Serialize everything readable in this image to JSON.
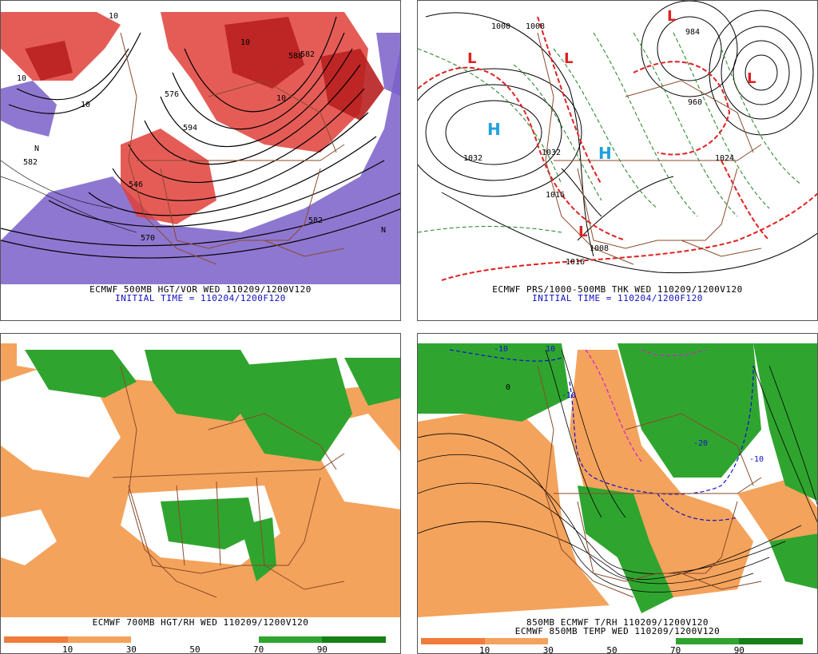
{
  "panels": {
    "top_left": {
      "caption1": "ECMWF 500MB HGT/VOR WED 110209/1200V120",
      "caption2": "INITIAL TIME = 110204/1200F120",
      "labels": [
        "582",
        "582",
        "576",
        "570",
        "588",
        "594",
        "546",
        "582"
      ],
      "extra_labels": [
        "10",
        "10",
        "10",
        "10",
        "10",
        "N",
        "N"
      ]
    },
    "top_right": {
      "caption1": "ECMWF PRS/1000-500MB THK WED 110209/1200V120",
      "caption2": "INITIAL TIME = 110204/1200F120",
      "highs": [
        "H",
        "H"
      ],
      "lows": [
        "L",
        "L",
        "L",
        "L",
        "L"
      ],
      "labels": [
        "1032",
        "1032",
        "1016",
        "1008",
        "1016",
        "1024",
        "984",
        "1000",
        "1008",
        "960"
      ]
    },
    "bottom_left": {
      "caption1": "ECMWF 700MB HGT/RH WED 110209/1200V120",
      "colorbar_ticks": [
        "10",
        "30",
        "50",
        "70",
        "90"
      ]
    },
    "bottom_right": {
      "caption1": "850MB ECMWF T/RH 110209/1200V120",
      "caption2": "ECMWF 850MB TEMP WED 110209/1200V120",
      "labels": [
        "-10",
        "-10",
        "-10",
        "-20",
        "10",
        "0"
      ],
      "colorbar_ticks": [
        "10",
        "30",
        "50",
        "70",
        "90"
      ]
    }
  },
  "colors": {
    "vorticity_red": "#e0403a",
    "vorticity_purple": "#7a5fc8",
    "rh_orange": "#f4a35c",
    "rh_green": "#2fa52f",
    "border_brown": "#8b4a2b",
    "thickness_red": "#e02020",
    "thickness_green": "#208020",
    "high_blue": "#20a0e0"
  }
}
